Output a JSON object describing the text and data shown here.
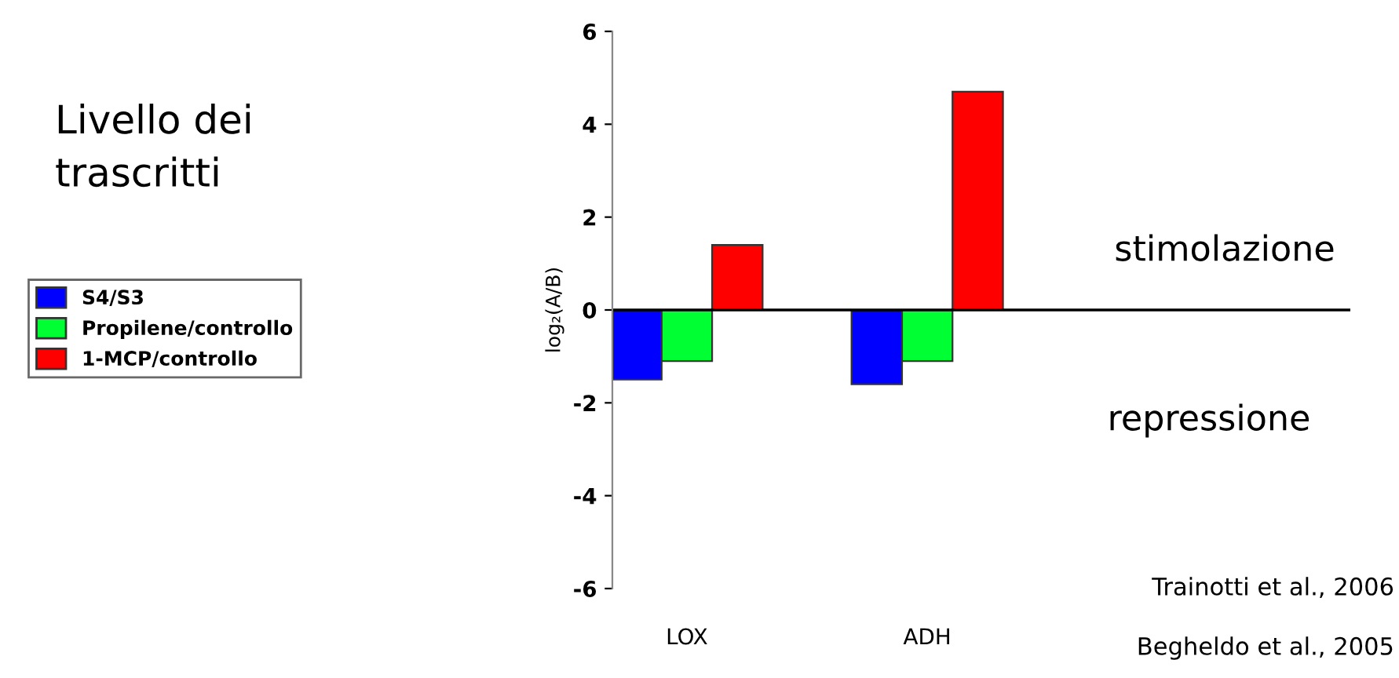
{
  "chart_data": {
    "type": "bar",
    "title": "Livello dei trascritti",
    "ylabel": "log₂(A/B)",
    "categories": [
      "LOX",
      "ADH"
    ],
    "series": [
      {
        "name": "S4/S3",
        "color": "#0000ff",
        "values": [
          -1.5,
          -1.6
        ]
      },
      {
        "name": "Propilene/controllo",
        "color": "#00ff33",
        "values": [
          -1.1,
          -1.1
        ]
      },
      {
        "name": "1-MCP/controllo",
        "color": "#ff0000",
        "values": [
          1.4,
          4.7
        ]
      }
    ],
    "ylim": [
      -6,
      6
    ],
    "yticks": [
      -6,
      -4,
      -2,
      0,
      2,
      4,
      6
    ],
    "ref_lines": [
      {
        "axis": "y",
        "value": 0,
        "color": "#000000"
      }
    ],
    "annotations": [
      "stimolazione",
      "repressione",
      "Trainotti et al., 2006",
      "Begheldo et al., 2005"
    ],
    "legend": "left",
    "grid": false
  }
}
